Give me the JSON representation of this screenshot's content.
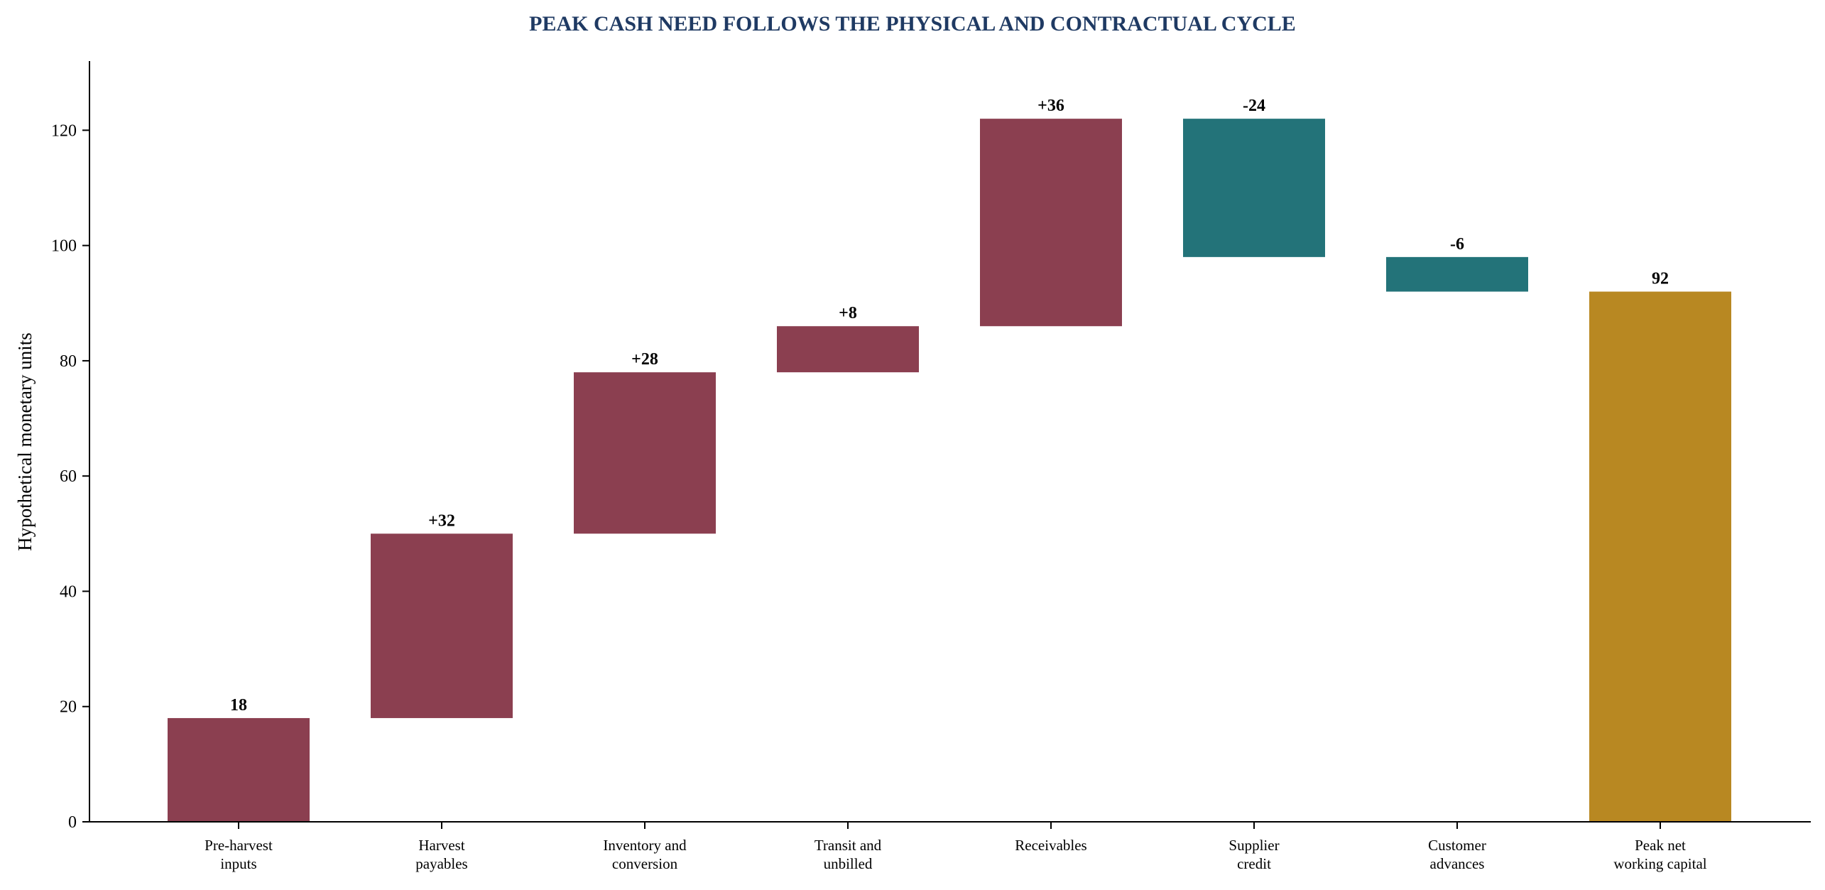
{
  "chart_data": {
    "type": "bar",
    "subtype": "waterfall",
    "title": "PEAK CASH NEED FOLLOWS THE PHYSICAL AND CONTRACTUAL CYCLE",
    "ylabel": "Hypothetical monetary units",
    "xlabel": "",
    "ylim": [
      0,
      132
    ],
    "yticks": [
      "0",
      "20",
      "40",
      "60",
      "80",
      "100",
      "120"
    ],
    "grid": false,
    "legend": "none",
    "colors": {
      "increase": "#8b3f50",
      "decrease": "#237379",
      "total": "#b88822",
      "title": "#1f3a63",
      "axis": "#000000"
    },
    "bars": [
      {
        "label": [
          "Pre-harvest",
          "inputs"
        ],
        "start": 0,
        "end": 18,
        "value_label": "18",
        "kind": "increase"
      },
      {
        "label": [
          "Harvest",
          "payables"
        ],
        "start": 18,
        "end": 50,
        "value_label": "+32",
        "kind": "increase"
      },
      {
        "label": [
          "Inventory and",
          "conversion"
        ],
        "start": 50,
        "end": 78,
        "value_label": "+28",
        "kind": "increase"
      },
      {
        "label": [
          "Transit and",
          "unbilled"
        ],
        "start": 78,
        "end": 86,
        "value_label": "+8",
        "kind": "increase"
      },
      {
        "label": [
          "Receivables"
        ],
        "start": 86,
        "end": 122,
        "value_label": "+36",
        "kind": "increase"
      },
      {
        "label": [
          "Supplier",
          "credit"
        ],
        "start": 122,
        "end": 98,
        "value_label": "-24",
        "kind": "decrease"
      },
      {
        "label": [
          "Customer",
          "advances"
        ],
        "start": 98,
        "end": 92,
        "value_label": "-6",
        "kind": "decrease"
      },
      {
        "label": [
          "Peak net",
          "working capital"
        ],
        "start": 0,
        "end": 92,
        "value_label": "92",
        "kind": "total"
      }
    ]
  }
}
